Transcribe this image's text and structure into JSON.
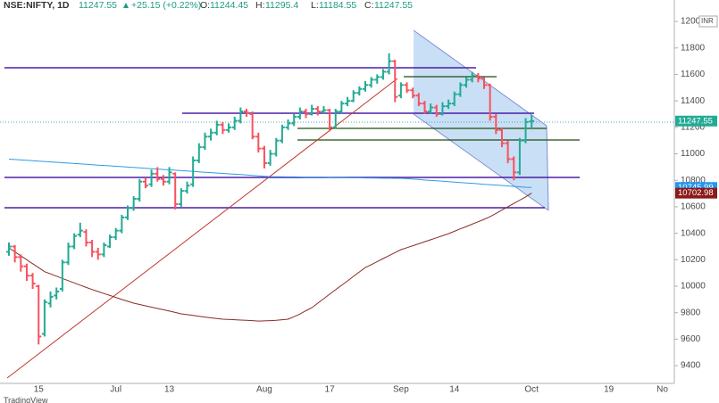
{
  "chart_data": {
    "type": "ohlc",
    "header": {
      "symbol": "NSE:NIFTY, 1D",
      "change": "+25.15 (+0.22%)",
      "ohlc_labels": [
        "O:",
        "H:",
        "L:",
        "C:"
      ]
    },
    "currency": "INR",
    "footer": "TradingView",
    "up_color": "#22ab94",
    "down_color": "#f7525f",
    "ylim": [
      9266,
      12162
    ],
    "yticks": [
      9400,
      9600,
      9800,
      10000,
      10200,
      10400,
      10600,
      10800,
      11000,
      11200,
      11400,
      11600,
      11800,
      12000
    ],
    "grid": false,
    "categories": [
      null,
      null,
      null,
      null,
      null,
      "15",
      null,
      null,
      null,
      null,
      null,
      null,
      null,
      null,
      null,
      null,
      null,
      null,
      "Jul",
      null,
      null,
      null,
      null,
      null,
      null,
      null,
      null,
      "13",
      null,
      null,
      null,
      null,
      null,
      null,
      null,
      null,
      null,
      null,
      null,
      null,
      null,
      null,
      null,
      "Aug",
      null,
      null,
      null,
      null,
      null,
      null,
      null,
      null,
      null,
      null,
      "17",
      null,
      null,
      null,
      null,
      null,
      null,
      null,
      null,
      null,
      null,
      null,
      "Sep",
      null,
      null,
      null,
      null,
      null,
      null,
      null,
      null,
      "14",
      null,
      null,
      null,
      null,
      null,
      null,
      null,
      null,
      null,
      null,
      null,
      null,
      "Oct",
      null,
      null,
      null,
      null,
      null,
      null,
      null,
      null,
      null,
      null,
      null,
      null,
      "19",
      null,
      null,
      null,
      null,
      null,
      null,
      null,
      null,
      "No",
      null
    ],
    "ohlc": [
      [
        10260,
        10330,
        10230,
        10300
      ],
      [
        10300,
        10310,
        10180,
        10220
      ],
      [
        10220,
        10240,
        10110,
        10150
      ],
      [
        10150,
        10170,
        10040,
        10080
      ],
      [
        10080,
        10100,
        9980,
        10020
      ],
      [
        10000,
        10010,
        9560,
        9620
      ],
      [
        9640,
        9900,
        9620,
        9880
      ],
      [
        9870,
        9960,
        9840,
        9920
      ],
      [
        9930,
        9990,
        9900,
        9960
      ],
      [
        9980,
        10200,
        9960,
        10180
      ],
      [
        10180,
        10330,
        10160,
        10300
      ],
      [
        10300,
        10400,
        10280,
        10380
      ],
      [
        10390,
        10480,
        10370,
        10420
      ],
      [
        10410,
        10430,
        10300,
        10330
      ],
      [
        10330,
        10350,
        10220,
        10260
      ],
      [
        10260,
        10290,
        10200,
        10240
      ],
      [
        10240,
        10330,
        10220,
        10310
      ],
      [
        10300,
        10390,
        10290,
        10370
      ],
      [
        10370,
        10440,
        10350,
        10420
      ],
      [
        10420,
        10540,
        10400,
        10520
      ],
      [
        10520,
        10610,
        10500,
        10590
      ],
      [
        10590,
        10680,
        10570,
        10660
      ],
      [
        10660,
        10810,
        10640,
        10790
      ],
      [
        10790,
        10820,
        10740,
        10760
      ],
      [
        10770,
        10880,
        10750,
        10850
      ],
      [
        10850,
        10900,
        10790,
        10810
      ],
      [
        10810,
        10840,
        10760,
        10790
      ],
      [
        10790,
        10900,
        10770,
        10860
      ],
      [
        10850,
        10860,
        10580,
        10620
      ],
      [
        10620,
        10740,
        10600,
        10720
      ],
      [
        10720,
        10790,
        10700,
        10760
      ],
      [
        10770,
        10980,
        10750,
        10950
      ],
      [
        10950,
        11080,
        10930,
        11050
      ],
      [
        11050,
        11160,
        11030,
        11130
      ],
      [
        11130,
        11190,
        11100,
        11160
      ],
      [
        11160,
        11250,
        11140,
        11220
      ],
      [
        11220,
        11240,
        11150,
        11180
      ],
      [
        11180,
        11230,
        11160,
        11200
      ],
      [
        11200,
        11280,
        11180,
        11250
      ],
      [
        11250,
        11350,
        11230,
        11320
      ],
      [
        11320,
        11340,
        11280,
        11310
      ],
      [
        11300,
        11320,
        11110,
        11130
      ],
      [
        11130,
        11160,
        11010,
        11040
      ],
      [
        11040,
        11060,
        10890,
        10930
      ],
      [
        10930,
        11030,
        10910,
        11000
      ],
      [
        11000,
        11120,
        10980,
        11100
      ],
      [
        11100,
        11220,
        11080,
        11200
      ],
      [
        11200,
        11260,
        11180,
        11230
      ],
      [
        11230,
        11300,
        11210,
        11280
      ],
      [
        11280,
        11350,
        11260,
        11320
      ],
      [
        11320,
        11340,
        11270,
        11300
      ],
      [
        11300,
        11370,
        11290,
        11340
      ],
      [
        11340,
        11360,
        11290,
        11320
      ],
      [
        11320,
        11360,
        11300,
        11330
      ],
      [
        11330,
        11340,
        11170,
        11200
      ],
      [
        11200,
        11340,
        11190,
        11320
      ],
      [
        11320,
        11400,
        11300,
        11380
      ],
      [
        11380,
        11430,
        11360,
        11400
      ],
      [
        11400,
        11480,
        11390,
        11460
      ],
      [
        11460,
        11510,
        11440,
        11490
      ],
      [
        11490,
        11550,
        11470,
        11520
      ],
      [
        11520,
        11580,
        11500,
        11560
      ],
      [
        11560,
        11600,
        11530,
        11580
      ],
      [
        11580,
        11640,
        11560,
        11620
      ],
      [
        11620,
        11760,
        11600,
        11700
      ],
      [
        11700,
        11710,
        11390,
        11430
      ],
      [
        11440,
        11540,
        11420,
        11520
      ],
      [
        11520,
        11540,
        11460,
        11480
      ],
      [
        11480,
        11500,
        11420,
        11440
      ],
      [
        11440,
        11460,
        11360,
        11380
      ],
      [
        11380,
        11400,
        11300,
        11320
      ],
      [
        11320,
        11380,
        11300,
        11350
      ],
      [
        11350,
        11370,
        11280,
        11300
      ],
      [
        11300,
        11390,
        11290,
        11360
      ],
      [
        11360,
        11410,
        11340,
        11380
      ],
      [
        11380,
        11470,
        11360,
        11450
      ],
      [
        11450,
        11540,
        11430,
        11520
      ],
      [
        11520,
        11580,
        11500,
        11560
      ],
      [
        11560,
        11620,
        11540,
        11590
      ],
      [
        11590,
        11610,
        11540,
        11570
      ],
      [
        11570,
        11580,
        11490,
        11520
      ],
      [
        11520,
        11530,
        11250,
        11280
      ],
      [
        11280,
        11300,
        11150,
        11180
      ],
      [
        11180,
        11200,
        11050,
        11080
      ],
      [
        11080,
        11100,
        10930,
        10960
      ],
      [
        10960,
        10980,
        10800,
        10860
      ],
      [
        10860,
        11120,
        10840,
        11100
      ],
      [
        11100,
        11270,
        11080,
        11240
      ],
      [
        11244.45,
        11295.4,
        11184.55,
        11247.55
      ],
      null,
      null,
      null,
      null,
      null,
      null,
      null,
      null,
      null,
      null,
      null,
      null,
      null,
      null,
      null,
      null,
      null,
      null,
      null,
      null,
      null,
      null,
      null
    ],
    "series": [
      {
        "color": "#2e9be6",
        "values": [
          10960,
          10957,
          10954,
          10951,
          10948,
          10945,
          10942,
          10939,
          10936,
          10933,
          10930,
          10927,
          10924,
          10921,
          10918,
          10915,
          10912,
          10909,
          10906,
          10903,
          10900,
          10897,
          10894,
          10891,
          10888,
          10885,
          10882,
          10879,
          10876,
          10873,
          10870,
          10867,
          10864,
          10861,
          10858,
          10855,
          10852,
          10849,
          10846,
          10843,
          10840,
          10837,
          10834,
          10831,
          10828,
          10827,
          10827,
          10826,
          10826,
          10825,
          10824,
          10824,
          10823,
          10823,
          10822,
          10821,
          10821,
          10820,
          10819,
          10819,
          10818,
          10818,
          10817,
          10816,
          10816,
          10815,
          10815,
          10812,
          10809,
          10806,
          10802,
          10799,
          10796,
          10793,
          10790,
          10786,
          10783,
          10780,
          10777,
          10774,
          10770,
          10767,
          10764,
          10761,
          10758,
          10754,
          10751,
          10748,
          10745.99,
          null,
          null,
          null,
          null,
          null,
          null,
          null,
          null,
          null,
          null,
          null,
          null,
          null,
          null,
          null,
          null,
          null,
          null,
          null,
          null,
          null,
          null,
          null
        ],
        "label_bg": "#2196f3"
      },
      {
        "color": "#8b2a24",
        "values": [
          10290,
          10260,
          10230,
          10200,
          10170,
          10140,
          10110,
          10093,
          10076,
          10059,
          10042,
          10025,
          10008,
          9991,
          9975,
          9960,
          9945,
          9930,
          9915,
          9900,
          9886,
          9872,
          9862,
          9852,
          9842,
          9832,
          9822,
          9812,
          9802,
          9791,
          9785,
          9779,
          9773,
          9767,
          9761,
          9756,
          9751,
          9749,
          9747,
          9744,
          9742,
          9740,
          9737,
          9738,
          9740,
          9743,
          9747,
          9751,
          9770,
          9790,
          9815,
          9838,
          9872,
          9906,
          9940,
          9974,
          10007,
          10040,
          10074,
          10108,
          10141,
          10163,
          10186,
          10209,
          10231,
          10254,
          10276,
          10291,
          10306,
          10321,
          10336,
          10351,
          10366,
          10381,
          10397,
          10415,
          10433,
          10451,
          10469,
          10487,
          10505,
          10525,
          10550,
          10575,
          10600,
          10625,
          10650,
          10675,
          10702.98,
          null,
          null,
          null,
          null,
          null,
          null,
          null,
          null,
          null,
          null,
          null,
          null,
          null,
          null,
          null,
          null,
          null,
          null,
          null,
          null,
          null,
          null,
          null
        ],
        "label_bg": "#8b1a1a"
      }
    ]
  }
}
